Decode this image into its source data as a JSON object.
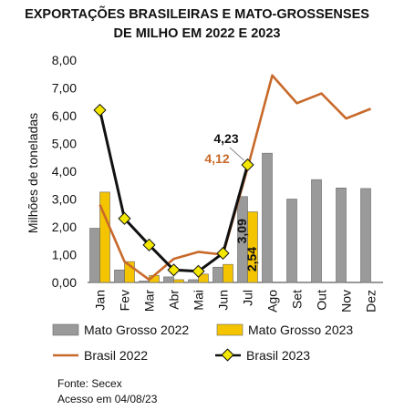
{
  "chart_data": {
    "type": "bar",
    "title": "EXPORTAÇÕES BRASILEIRAS E MATO-GROSSENSES DE MILHO EM 2022 E 2023",
    "title_lines": [
      "EXPORTAÇÕES BRASILEIRAS E MATO-GROSSENSES",
      "DE MILHO EM 2022 E 2023"
    ],
    "ylabel": "Milhões de toneladas",
    "xlabel": "",
    "ylim": [
      0,
      8
    ],
    "yticks": [
      "0,00",
      "1,00",
      "2,00",
      "3,00",
      "4,00",
      "5,00",
      "6,00",
      "7,00",
      "8,00"
    ],
    "categories": [
      "Jan",
      "Fev",
      "Mar",
      "Abr",
      "Mai",
      "Jun",
      "Jul",
      "Ago",
      "Set",
      "Out",
      "Nov",
      "Dez"
    ],
    "grid": false,
    "legend_position": "bottom",
    "series": [
      {
        "name": "Mato Grosso 2022",
        "kind": "bar",
        "color": "#9a9a9a",
        "values": [
          1.95,
          0.45,
          0.05,
          0.2,
          0.1,
          0.55,
          3.09,
          4.65,
          3.0,
          3.7,
          3.4,
          3.38
        ]
      },
      {
        "name": "Mato Grosso 2023",
        "kind": "bar",
        "color": "#f5c400",
        "values": [
          3.25,
          0.75,
          0.25,
          0.1,
          0.3,
          0.65,
          2.54,
          null,
          null,
          null,
          null,
          null
        ]
      },
      {
        "name": "Brasil 2022",
        "kind": "line",
        "color": "#c8692a",
        "values": [
          2.8,
          0.75,
          0.1,
          0.85,
          1.1,
          1.0,
          4.12,
          7.45,
          6.45,
          6.8,
          5.9,
          6.25
        ]
      },
      {
        "name": "Brasil 2023",
        "kind": "line-marker",
        "color": "#111111",
        "marker_color": "#f5e800",
        "values": [
          6.2,
          2.3,
          1.35,
          0.45,
          0.4,
          1.05,
          4.23,
          null,
          null,
          null,
          null,
          null
        ]
      }
    ],
    "annotations": {
      "brasil_2023_jul": "4,23",
      "brasil_2022_jul": "4,12",
      "mt_2022_jul": "3,09",
      "mt_2023_jul": "2,54"
    }
  },
  "source": {
    "line1": "Fonte: Secex",
    "line2": "Acesso em 04/08/23"
  }
}
